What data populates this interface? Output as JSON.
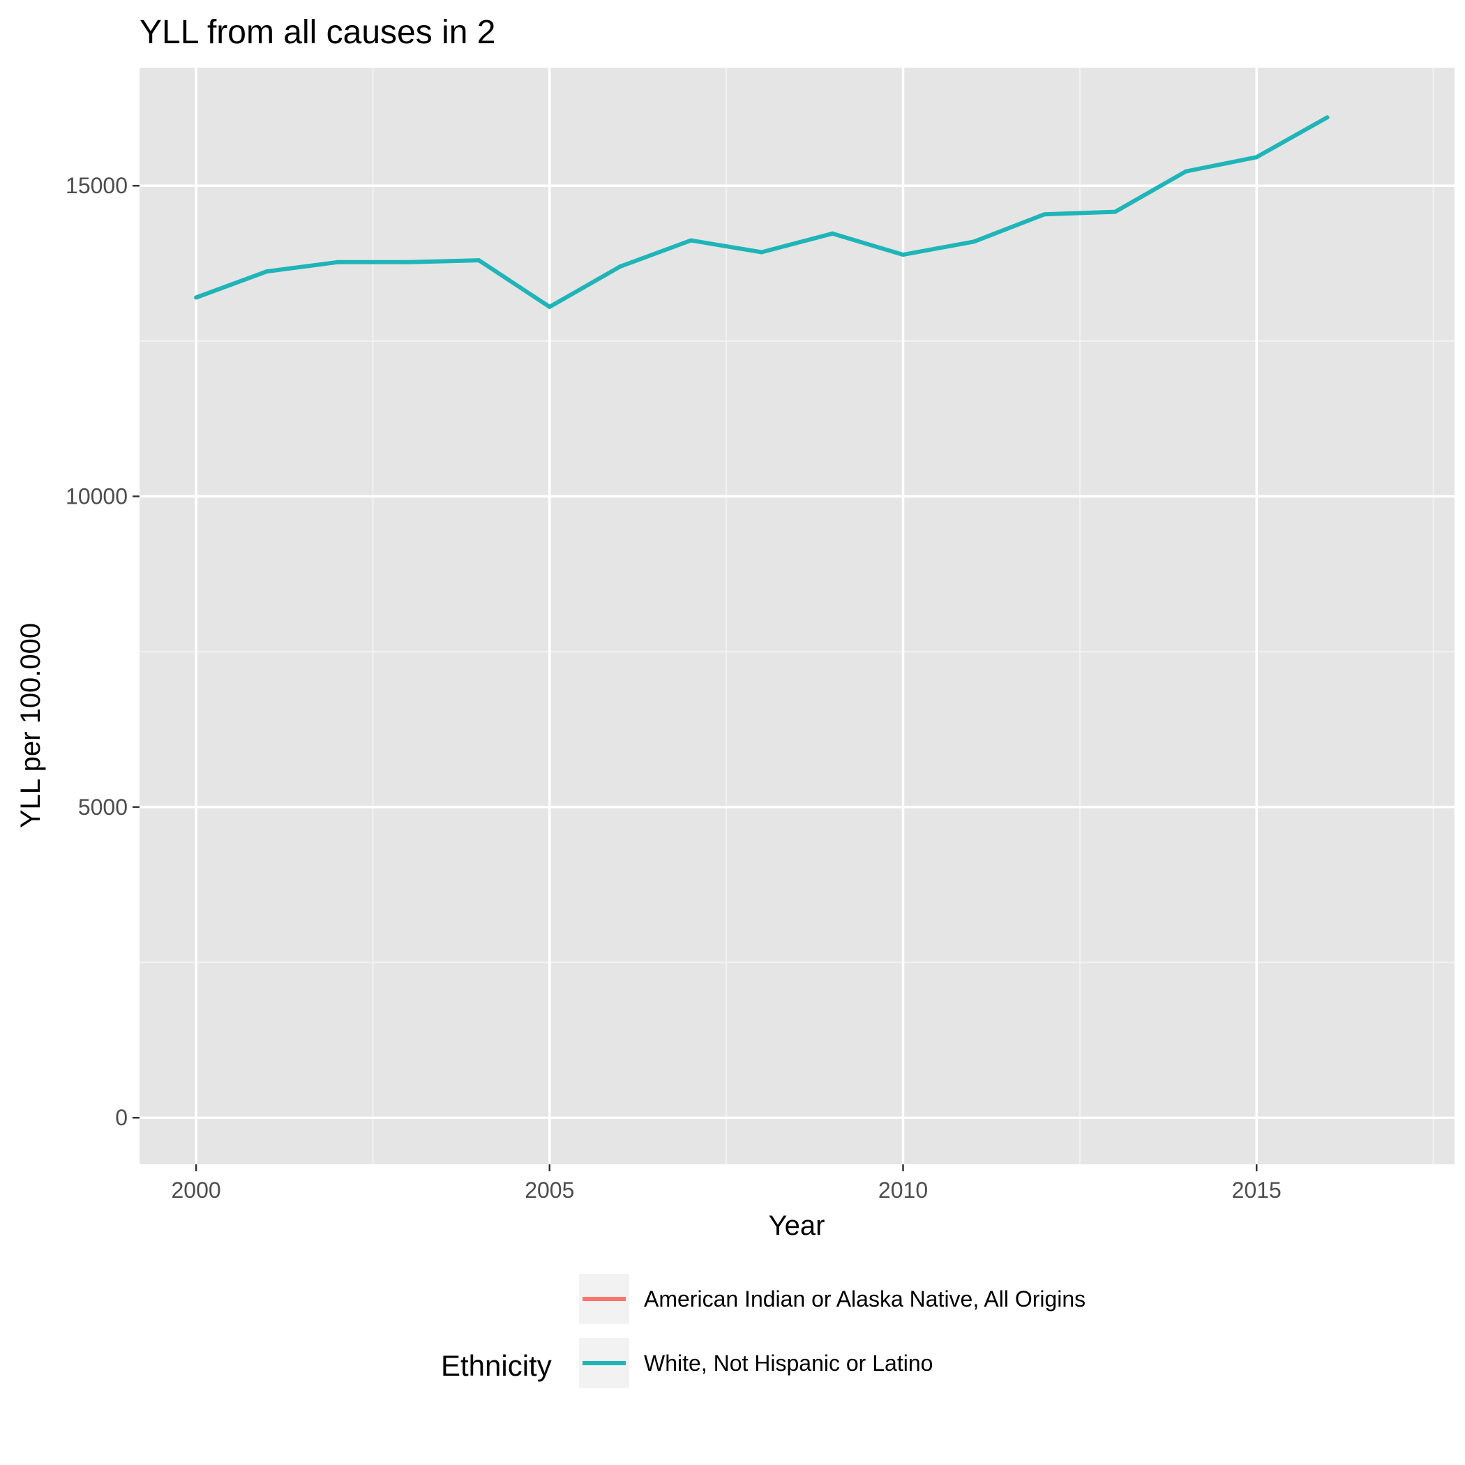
{
  "chart_data": {
    "type": "line",
    "title": "YLL from all causes in 2",
    "xlabel": "Year",
    "ylabel": "YLL per 100.000",
    "xlim": [
      1999.2,
      2017.8
    ],
    "ylim": [
      -750,
      16900
    ],
    "x_ticks": [
      2000,
      2005,
      2010,
      2015
    ],
    "x_tick_labels": [
      "2000",
      "2005",
      "2010",
      "2015"
    ],
    "y_ticks": [
      0,
      5000,
      10000,
      15000
    ],
    "y_tick_labels": [
      "0",
      "5000",
      "10000",
      "15000"
    ],
    "grid": true,
    "legend": {
      "title": "Ethnicity",
      "position": "bottom",
      "entries": [
        {
          "label": "American Indian or Alaska Native, All Origins",
          "color": "#F8766D"
        },
        {
          "label": "White, Not Hispanic or Latino",
          "color": "#1FB5B8"
        }
      ]
    },
    "series": [
      {
        "name": "White, Not Hispanic or Latino",
        "color": "#1FB5B8",
        "x": [
          2000,
          2001,
          2002,
          2003,
          2004,
          2005,
          2006,
          2007,
          2008,
          2009,
          2010,
          2011,
          2012,
          2013,
          2014,
          2015,
          2016
        ],
        "y": [
          13200,
          13620,
          13770,
          13770,
          13800,
          13050,
          13700,
          14120,
          13930,
          14230,
          13890,
          14100,
          14540,
          14580,
          15230,
          15460,
          16100
        ]
      }
    ]
  }
}
